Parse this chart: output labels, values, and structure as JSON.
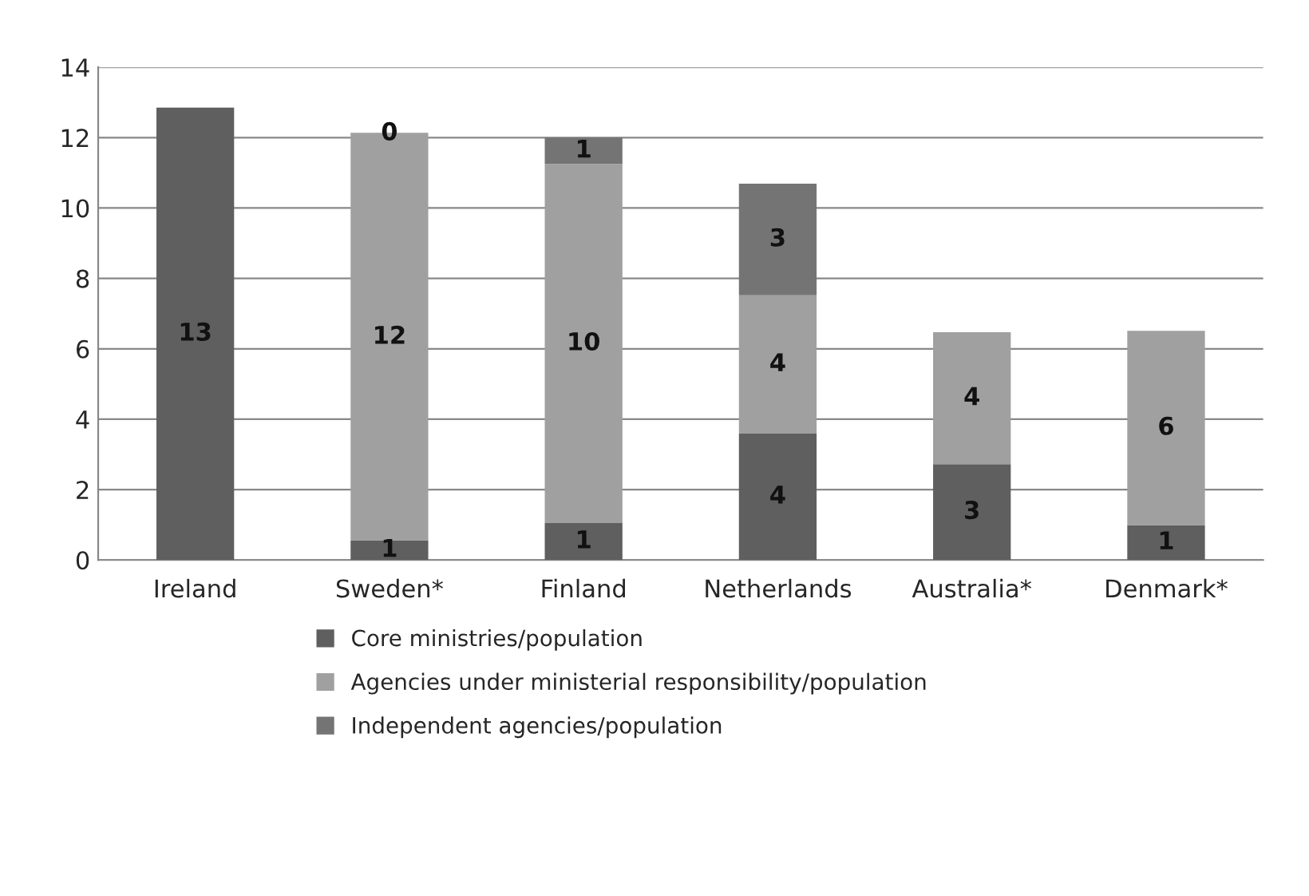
{
  "chart_data": {
    "type": "bar",
    "stacked": true,
    "categories": [
      "Ireland",
      "Sweden*",
      "Finland",
      "Netherlands",
      "Australia*",
      "Denmark*"
    ],
    "series": [
      {
        "name": "Core ministries/population",
        "color": "#5f5f5f",
        "values": [
          12.85,
          0.56,
          1.05,
          3.59,
          2.72,
          0.99
        ],
        "value_labels": [
          "13",
          "1",
          "1",
          "4",
          "3",
          "1"
        ]
      },
      {
        "name": "Agencies under ministerial responsibility/population",
        "color": "#a0a0a0",
        "values": [
          null,
          11.55,
          10.2,
          3.93,
          3.75,
          5.52
        ],
        "value_labels": [
          null,
          "12",
          "10",
          "4",
          "4",
          "6"
        ]
      },
      {
        "name": "Independent agencies/population",
        "color": "#747474",
        "values": [
          null,
          0.02,
          0.75,
          3.17,
          null,
          null
        ],
        "value_labels": [
          null,
          "0",
          "1",
          "3",
          null,
          null
        ]
      }
    ],
    "ylim": [
      0,
      14
    ],
    "yticks": [
      0,
      2,
      4,
      6,
      8,
      10,
      12,
      14
    ],
    "grid": "y",
    "legend": "bottom"
  }
}
